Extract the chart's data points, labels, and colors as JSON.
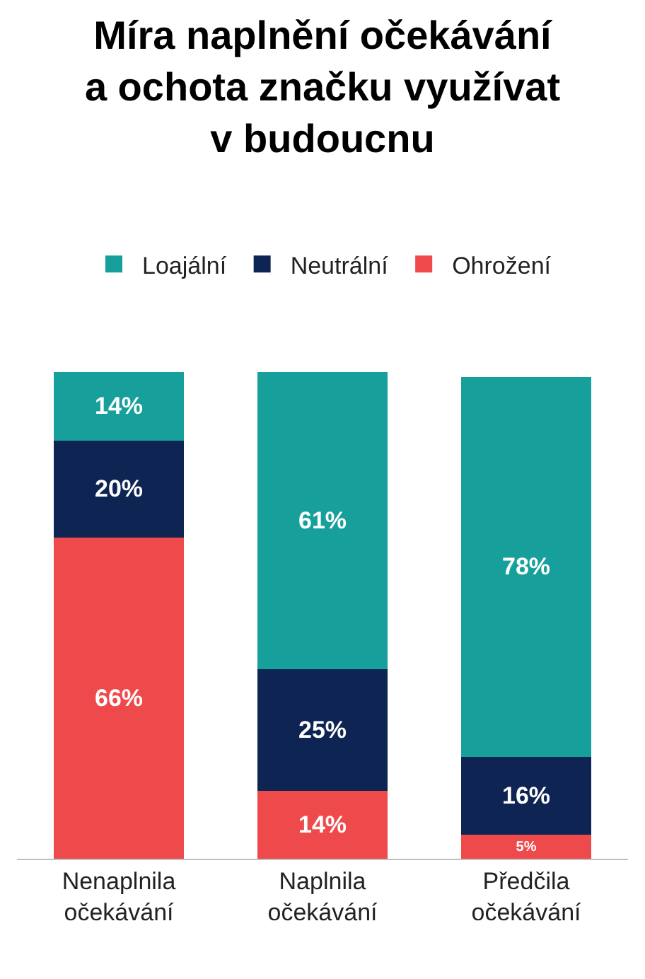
{
  "chart_data": {
    "type": "bar",
    "title": "Míra naplnění očekávání\na ochota značku využívat\nv budoucnu",
    "categories": [
      "Nenaplnila\nočekávání",
      "Naplnila\nočekávání",
      "Předčila\nočekávání"
    ],
    "stacked": true,
    "legend": "top",
    "tick_labels": "x",
    "series": [
      {
        "name": "Ohrožení",
        "color": "#ef4a4b",
        "values": [
          66,
          14,
          5
        ],
        "value_labels": [
          "66%",
          "14%",
          "5%"
        ]
      },
      {
        "name": "Neutrální",
        "color": "#0e2452",
        "values": [
          20,
          25,
          16
        ],
        "value_labels": [
          "20%",
          "25%",
          "16%"
        ]
      },
      {
        "name": "Loajální",
        "color": "#17a09b",
        "values": [
          14,
          61,
          78
        ],
        "value_labels": [
          "14%",
          "61%",
          "78%"
        ]
      }
    ]
  }
}
